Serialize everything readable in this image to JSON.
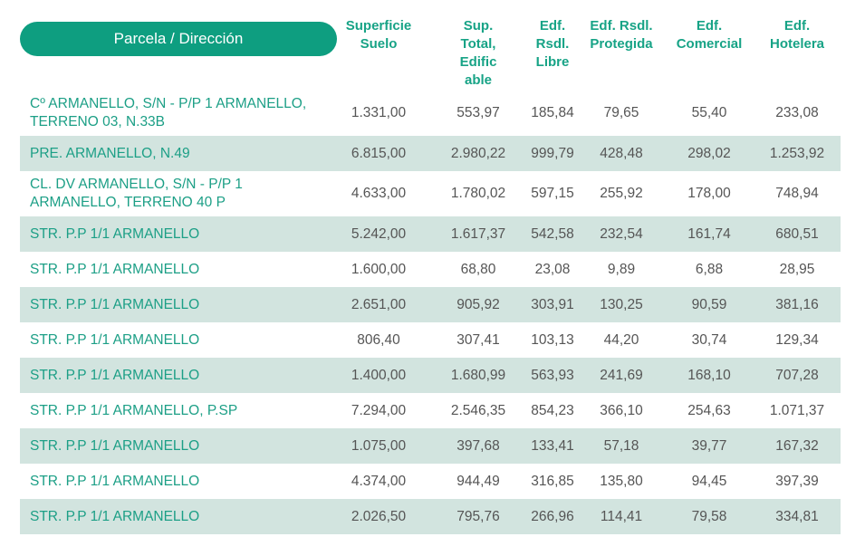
{
  "header": {
    "title": "Parcela / Dirección",
    "columns": [
      [
        "Superficie",
        "Suelo"
      ],
      [
        "Sup.",
        "Total,",
        "Edific",
        "able"
      ],
      [
        "Edf.",
        "Rsdl.",
        "Libre"
      ],
      [
        "Edf. Rsdl.",
        "Protegida"
      ],
      [
        "Edf.",
        "Comercial"
      ],
      [
        "Edf.",
        "Hotelera"
      ]
    ]
  },
  "table": {
    "rows": [
      [
        "Cº ARMANELLO, S/N - P/P 1 ARMANELLO, TERRENO 03, N.33B",
        "1.331,00",
        "553,97",
        "185,84",
        "79,65",
        "55,40",
        "233,08"
      ],
      [
        "PRE. ARMANELLO, N.49",
        "6.815,00",
        "2.980,22",
        "999,79",
        "428,48",
        "298,02",
        "1.253,92"
      ],
      [
        "CL. DV ARMANELLO, S/N - P/P 1 ARMANELLO, TERRENO 40 P",
        "4.633,00",
        "1.780,02",
        "597,15",
        "255,92",
        "178,00",
        "748,94"
      ],
      [
        "STR. P.P 1/1 ARMANELLO",
        "5.242,00",
        "1.617,37",
        "542,58",
        "232,54",
        "161,74",
        "680,51"
      ],
      [
        "STR. P.P 1/1 ARMANELLO",
        "1.600,00",
        "68,80",
        "23,08",
        "9,89",
        "6,88",
        "28,95"
      ],
      [
        "STR. P.P 1/1 ARMANELLO",
        "2.651,00",
        "905,92",
        "303,91",
        "130,25",
        "90,59",
        "381,16"
      ],
      [
        "STR. P.P 1/1 ARMANELLO",
        "806,40",
        "307,41",
        "103,13",
        "44,20",
        "30,74",
        "129,34"
      ],
      [
        "STR. P.P 1/1 ARMANELLO",
        "1.400,00",
        "1.680,99",
        "563,93",
        "241,69",
        "168,10",
        "707,28"
      ],
      [
        "STR. P.P 1/1 ARMANELLO, P.SP",
        "7.294,00",
        "2.546,35",
        "854,23",
        "366,10",
        "254,63",
        "1.071,37"
      ],
      [
        "STR. P.P 1/1 ARMANELLO",
        "1.075,00",
        "397,68",
        "133,41",
        "57,18",
        "39,77",
        "167,32"
      ],
      [
        "STR. P.P 1/1 ARMANELLO",
        "4.374,00",
        "944,49",
        "316,85",
        "135,80",
        "94,45",
        "397,39"
      ],
      [
        "STR. P.P 1/1 ARMANELLO",
        "2.026,50",
        "795,76",
        "266,96",
        "114,41",
        "79,58",
        "334,81"
      ]
    ]
  }
}
